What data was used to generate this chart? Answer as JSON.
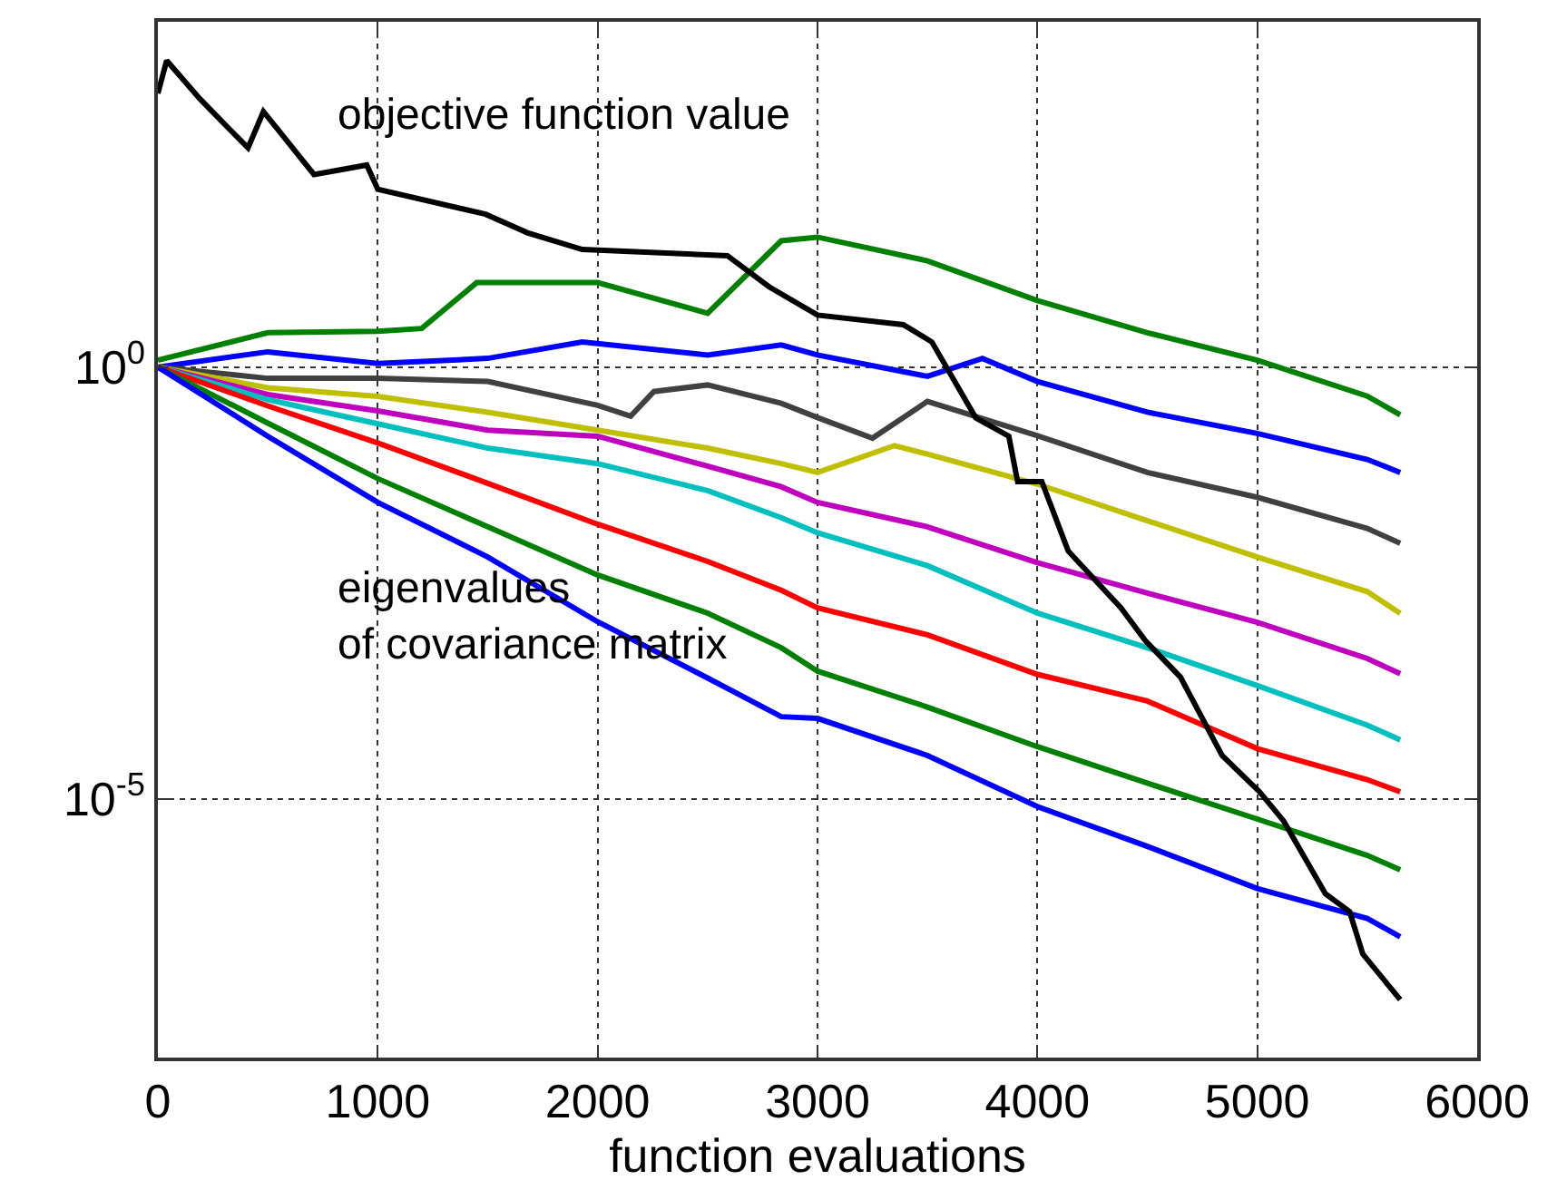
{
  "chart_data": {
    "type": "line",
    "xlabel": "function evaluations",
    "annotations": [
      "objective function value",
      "eigenvalues\nof covariance matrix"
    ],
    "xlim": [
      0,
      6000
    ],
    "xticks": [
      0,
      1000,
      2000,
      3000,
      4000,
      5000,
      6000
    ],
    "ylim": [
      1e-08,
      10000
    ],
    "yticks": [
      {
        "value": 1,
        "label": "10$^{0}$"
      },
      {
        "value": 1e-05,
        "label": "10$^{-5}$"
      }
    ],
    "log": "y",
    "grid": true,
    "marker": "none",
    "line_style": "solid",
    "series": [
      {
        "color": "#008000",
        "x": [
          0,
          500,
          1000,
          1200,
          1450,
          2000,
          2500,
          2835,
          3000,
          3500,
          4000,
          4500,
          5000,
          5500,
          5650
        ],
        "values": [
          1.2,
          2.5,
          2.6,
          2.8,
          9.5,
          9.5,
          4.2,
          29,
          32,
          17,
          5.9,
          2.5,
          1.2,
          0.46,
          0.28
        ]
      },
      {
        "color": "#0000ff",
        "x": [
          0,
          500,
          1000,
          1500,
          1930,
          2500,
          2835,
          3000,
          3500,
          3750,
          4000,
          4500,
          5000,
          5500,
          5650
        ],
        "values": [
          1,
          1.5,
          1.1,
          1.26,
          1.95,
          1.38,
          1.8,
          1.38,
          0.78,
          1.26,
          0.68,
          0.3,
          0.17,
          0.085,
          0.06
        ]
      },
      {
        "color": "#404040",
        "x": [
          0,
          500,
          1000,
          1500,
          2000,
          2150,
          2256,
          2500,
          2835,
          3000,
          3250,
          3500,
          4000,
          4500,
          5000,
          5500,
          5650
        ],
        "values": [
          1,
          0.74,
          0.74,
          0.68,
          0.36,
          0.27,
          0.52,
          0.62,
          0.38,
          0.26,
          0.15,
          0.4,
          0.16,
          0.06,
          0.031,
          0.0135,
          0.0091
        ]
      },
      {
        "color": "#bfbf00",
        "x": [
          0,
          500,
          1000,
          1500,
          2000,
          2500,
          2835,
          3000,
          3350,
          3500,
          4000,
          4500,
          5000,
          5500,
          5650
        ],
        "values": [
          1,
          0.575,
          0.457,
          0.3,
          0.186,
          0.115,
          0.076,
          0.06,
          0.123,
          0.098,
          0.044,
          0.0166,
          0.0063,
          0.0025,
          0.0014
        ]
      },
      {
        "color": "#bf00bf",
        "x": [
          0,
          500,
          1000,
          1500,
          2000,
          2500,
          2835,
          3000,
          3500,
          4000,
          4500,
          5000,
          5500,
          5650
        ],
        "values": [
          1,
          0.48,
          0.31,
          0.186,
          0.158,
          0.071,
          0.041,
          0.027,
          0.0141,
          0.0054,
          0.0024,
          0.0011,
          0.00042,
          0.00028
        ]
      },
      {
        "color": "#00bfbf",
        "x": [
          0,
          500,
          1000,
          1500,
          2000,
          2500,
          2835,
          3000,
          3500,
          4000,
          4500,
          5000,
          5500,
          5650
        ],
        "values": [
          1,
          0.42,
          0.22,
          0.115,
          0.076,
          0.037,
          0.018,
          0.012,
          0.005,
          0.00141,
          0.00056,
          0.000204,
          7.1e-05,
          4.8e-05
        ]
      },
      {
        "color": "#ff0000",
        "x": [
          0,
          500,
          1000,
          1500,
          2000,
          2500,
          2835,
          3000,
          3500,
          4000,
          4500,
          5000,
          5500,
          5650
        ],
        "values": [
          1,
          0.355,
          0.132,
          0.045,
          0.0151,
          0.0056,
          0.0026,
          0.00162,
          0.00079,
          0.000275,
          0.000135,
          3.8e-05,
          1.66e-05,
          1.2e-05
        ]
      },
      {
        "color": "#008000",
        "x": [
          0,
          500,
          1000,
          1500,
          2000,
          2500,
          2835,
          3000,
          3500,
          4000,
          4500,
          5000,
          5500,
          5650
        ],
        "values": [
          1,
          0.224,
          0.051,
          0.0141,
          0.0039,
          0.00141,
          0.00056,
          0.0003,
          0.000115,
          4e-05,
          1.51e-05,
          5.8e-06,
          2.2e-06,
          1.5e-06
        ]
      },
      {
        "color": "#0000ff",
        "x": [
          0,
          500,
          1000,
          1500,
          2000,
          2500,
          2835,
          3000,
          3500,
          4000,
          4500,
          5000,
          5500,
          5650
        ],
        "values": [
          1,
          0.158,
          0.027,
          0.0063,
          0.00112,
          0.00025,
          8.9e-05,
          8.5e-05,
          3.16e-05,
          8.1e-06,
          2.8e-06,
          9.1e-07,
          4.1e-07,
          2.5e-07
        ]
      },
      {
        "color": "#000000",
        "x": [
          0,
          40,
          190,
          270,
          410,
          480,
          710,
          950,
          1000,
          1490,
          1680,
          1930,
          2590,
          2780,
          3000,
          3390,
          3520,
          3720,
          3870,
          3910,
          4020,
          4140,
          4380,
          4490,
          4650,
          4840,
          5010,
          5120,
          5310,
          5420,
          5480,
          5650
        ],
        "values": [
          1480,
          3550,
          1290,
          794,
          347,
          912,
          170,
          219,
          115,
          59,
          36,
          23,
          19.5,
          8.5,
          4.0,
          3.1,
          1.95,
          0.257,
          0.158,
          0.047,
          0.047,
          0.0074,
          0.00162,
          0.00068,
          0.000257,
          3.16e-05,
          1.2e-05,
          5.5e-06,
          7.9e-07,
          4.9e-07,
          1.58e-07,
          4.7e-08
        ]
      }
    ]
  }
}
